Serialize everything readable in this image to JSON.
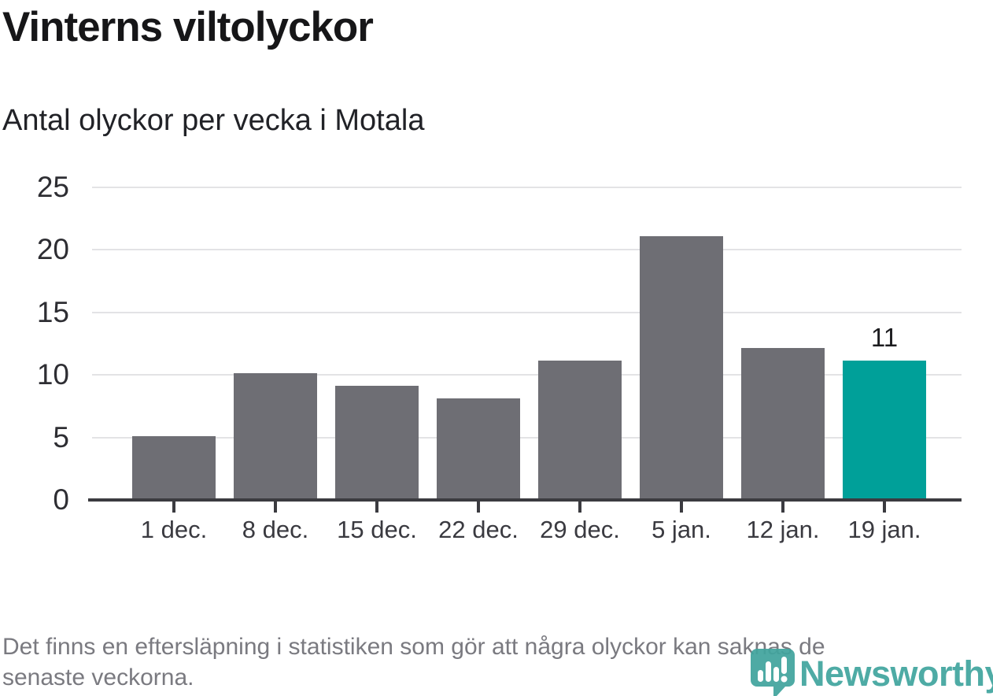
{
  "header": {
    "title": "Vinterns viltolyckor",
    "subtitle": "Antal olyckor per vecka i Motala"
  },
  "chart_data": {
    "type": "bar",
    "title": "Vinterns viltolyckor",
    "subtitle": "Antal olyckor per vecka i Motala",
    "categories": [
      "1 dec.",
      "8 dec.",
      "15 dec.",
      "22 dec.",
      "29 dec.",
      "5 jan.",
      "12 jan.",
      "19 jan."
    ],
    "values": [
      5,
      10,
      9,
      8,
      11,
      21,
      12,
      11
    ],
    "highlight_index": 7,
    "annotation": {
      "index": 7,
      "text": "11"
    },
    "yticks": [
      0,
      5,
      10,
      15,
      20,
      25
    ],
    "ylim": [
      0,
      25
    ],
    "xlabel": "",
    "ylabel": "",
    "grid": "horizontal",
    "legend": "none",
    "colors": {
      "bar": "#6e6e74",
      "highlight": "#00a099",
      "axis": "#3b3b40",
      "gridline": "#e3e3e5",
      "y_tick_label": "#2e2e33",
      "x_tick_label": "#3a3a40"
    }
  },
  "footer": {
    "note_line1": "Det finns en eftersläpning i statistiken som gör att några olyckor kan saknas de",
    "note_line2": "senaste veckorna."
  },
  "logo": {
    "brand": "Newsworthy",
    "icon": "newsworthy-pin-chart-icon",
    "color": "#41a59f"
  }
}
